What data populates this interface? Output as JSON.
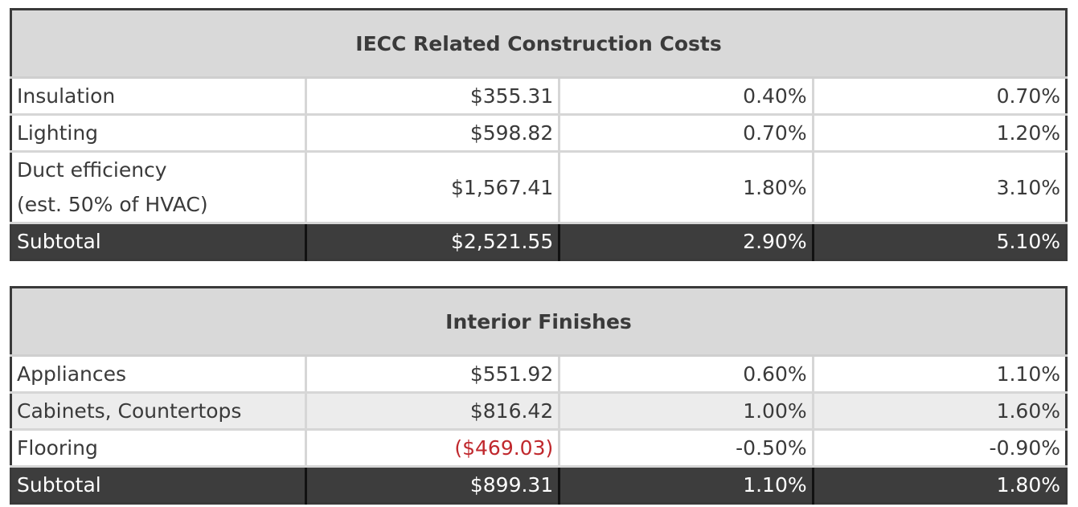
{
  "tables": [
    {
      "title": "IECC Related Construction Costs",
      "rows": [
        {
          "label": "Insulation",
          "cost": "$355.31",
          "pct1": "0.40%",
          "pct2": "0.70%"
        },
        {
          "label": "Lighting",
          "cost": "$598.82",
          "pct1": "0.70%",
          "pct2": "1.20%"
        },
        {
          "label_line1": "Duct efficiency",
          "label_line2": "(est. 50% of HVAC)",
          "cost": "$1,567.41",
          "pct1": "1.80%",
          "pct2": "3.10%"
        }
      ],
      "subtotal": {
        "label": "Subtotal",
        "cost": "$2,521.55",
        "pct1": "2.90%",
        "pct2": "5.10%"
      }
    },
    {
      "title": "Interior Finishes",
      "rows": [
        {
          "label": "Appliances",
          "cost": "$551.92",
          "pct1": "0.60%",
          "pct2": "1.10%"
        },
        {
          "label": "Cabinets, Countertops",
          "cost": "$816.42",
          "pct1": "1.00%",
          "pct2": "1.60%"
        },
        {
          "label": "Flooring",
          "cost": "($469.03)",
          "pct1": "-0.50%",
          "pct2": "-0.90%"
        }
      ],
      "subtotal": {
        "label": "Subtotal",
        "cost": "$899.31",
        "pct1": "1.10%",
        "pct2": "1.80%"
      }
    }
  ],
  "colors": {
    "header_bg": "#d9d9d9",
    "subtotal_bg": "#3d3d3d",
    "negative": "#c0282d"
  }
}
